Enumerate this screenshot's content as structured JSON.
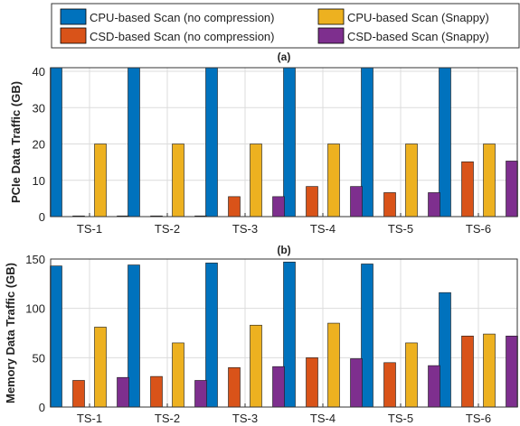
{
  "legend": {
    "items": [
      {
        "label": "CPU-based Scan (no compression)",
        "color": "#0072BD"
      },
      {
        "label": "CPU-based Scan (Snappy)",
        "color": "#EDB120"
      },
      {
        "label": "CSD-based Scan (no compression)",
        "color": "#D95319"
      },
      {
        "label": "CSD-based Scan (Snappy)",
        "color": "#7E2F8E"
      }
    ]
  },
  "chart_data": [
    {
      "type": "bar",
      "panel_label": "(a)",
      "ylabel": "PCIe Data Traffic (GB)",
      "categories": [
        "TS-1",
        "TS-2",
        "TS-3",
        "TS-4",
        "TS-5",
        "TS-6"
      ],
      "ylim": [
        0,
        41
      ],
      "yticks": [
        0,
        10,
        20,
        30,
        40
      ],
      "grid": true,
      "series": [
        {
          "name": "CPU-based Scan (no compression)",
          "color": "#0072BD",
          "values": [
            41,
            41,
            41,
            41,
            41,
            41
          ]
        },
        {
          "name": "CSD-based Scan (no compression)",
          "color": "#D95319",
          "values": [
            0.2,
            0.2,
            5.5,
            8.3,
            6.6,
            15.1
          ]
        },
        {
          "name": "CPU-based Scan (Snappy)",
          "color": "#EDB120",
          "values": [
            20,
            20,
            20,
            20,
            20,
            20
          ]
        },
        {
          "name": "CSD-based Scan (Snappy)",
          "color": "#7E2F8E",
          "values": [
            0.2,
            0.2,
            5.5,
            8.3,
            6.6,
            15.3
          ]
        }
      ]
    },
    {
      "type": "bar",
      "panel_label": "(b)",
      "ylabel": "Memory Data Traffic (GB)",
      "categories": [
        "TS-1",
        "TS-2",
        "TS-3",
        "TS-4",
        "TS-5",
        "TS-6"
      ],
      "ylim": [
        0,
        150
      ],
      "yticks": [
        0,
        50,
        100,
        150
      ],
      "grid": true,
      "series": [
        {
          "name": "CPU-based Scan (no compression)",
          "color": "#0072BD",
          "values": [
            143,
            144,
            146,
            147,
            145,
            116
          ]
        },
        {
          "name": "CSD-based Scan (no compression)",
          "color": "#D95319",
          "values": [
            27,
            31,
            40,
            50,
            45,
            72
          ]
        },
        {
          "name": "CPU-based Scan (Snappy)",
          "color": "#EDB120",
          "values": [
            81,
            65,
            83,
            85,
            65,
            74
          ]
        },
        {
          "name": "CSD-based Scan (Snappy)",
          "color": "#7E2F8E",
          "values": [
            30,
            27,
            41,
            49,
            42,
            72
          ]
        }
      ]
    }
  ]
}
